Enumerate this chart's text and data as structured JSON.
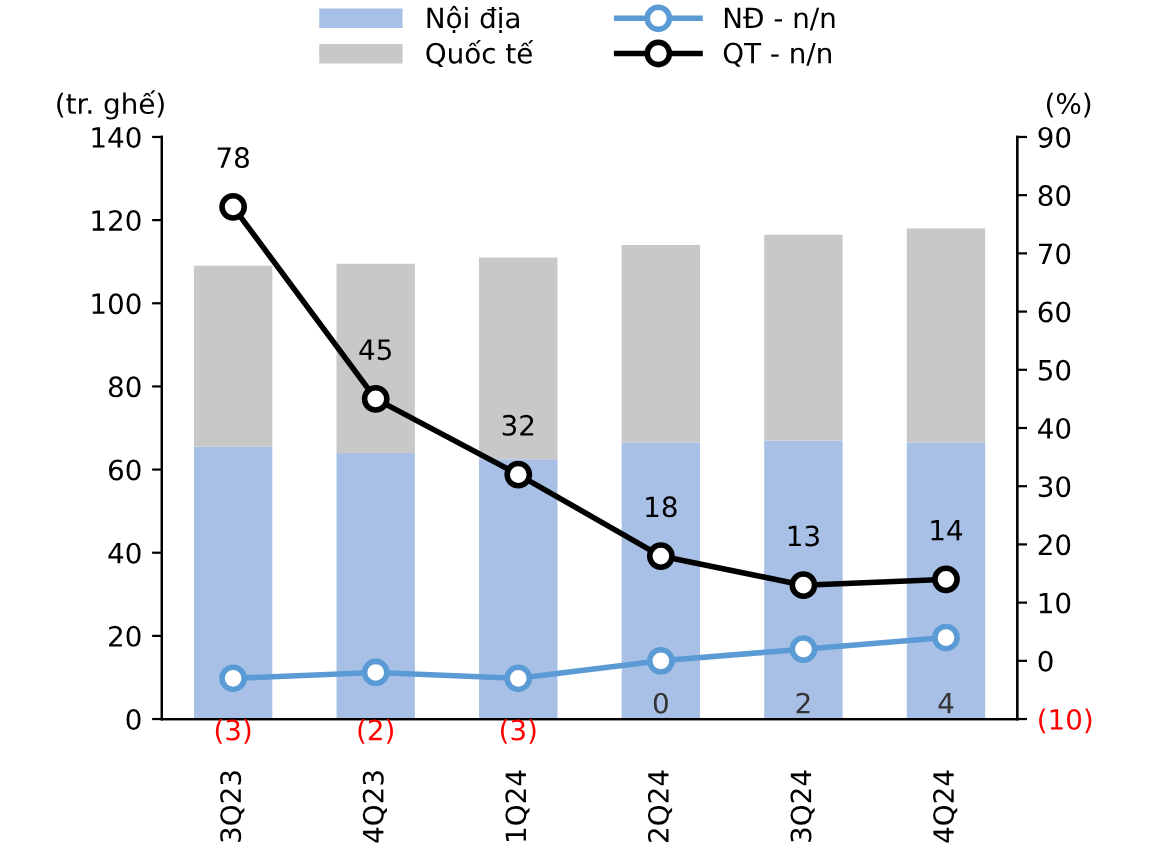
{
  "chart_data": {
    "type": "bar",
    "stacked": true,
    "ylabel": "(tr. ghế)",
    "y2label": "(%)",
    "categories": [
      "3Q23",
      "4Q23",
      "1Q24",
      "2Q24",
      "3Q24",
      "4Q24"
    ],
    "series": [
      {
        "name": "Nội địa",
        "color": "#a9c0e6",
        "values": [
          65.5,
          64,
          62.5,
          66.5,
          67,
          66.5
        ]
      },
      {
        "name": "Quốc tế",
        "color": "#c8c8c8",
        "values": [
          43.5,
          45.5,
          48.5,
          47.5,
          49.5,
          51.5
        ]
      },
      {
        "name": "NĐ - n/n",
        "type": "line",
        "axis": "y2",
        "color": "#5b9bd5",
        "values": [
          -3,
          -2,
          -3,
          0,
          2,
          4
        ],
        "value_labels": [
          "(3)",
          "(2)",
          "(3)",
          "0",
          "2",
          "4"
        ]
      },
      {
        "name": "QT - n/n",
        "type": "line",
        "axis": "y2",
        "color": "#000000",
        "values": [
          78,
          45,
          32,
          18,
          13,
          14
        ],
        "value_labels": [
          "78",
          "45",
          "32",
          "18",
          "13",
          "14"
        ]
      }
    ],
    "ylim": [
      0,
      140
    ],
    "yticks": [
      0,
      20,
      40,
      60,
      80,
      100,
      120,
      140
    ],
    "y2lim": [
      -10,
      90
    ],
    "y2ticks": [
      {
        "value": -10,
        "label": "(10)"
      },
      0,
      10,
      20,
      30,
      40,
      50,
      60,
      70,
      80,
      90
    ],
    "marker": "circle",
    "line_style": "solid",
    "legend": "top",
    "grid": false
  }
}
